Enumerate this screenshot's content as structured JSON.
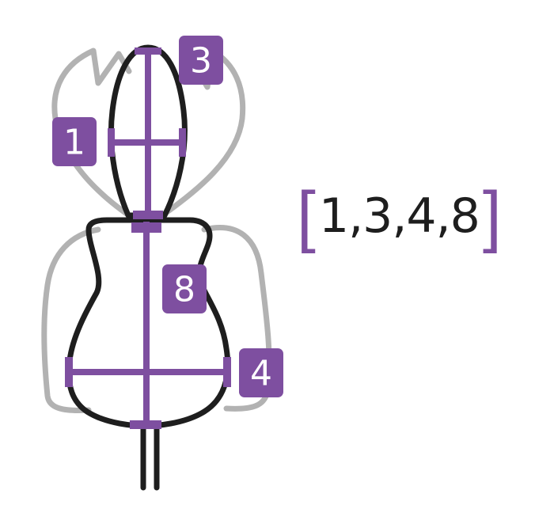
{
  "colors": {
    "accent": "#7e4fa0",
    "outline": "#1e1e1e",
    "ghost": "#b2b2b2"
  },
  "labels": {
    "badge_1": "1",
    "badge_3": "3",
    "badge_8": "8",
    "badge_4": "4"
  },
  "vector": {
    "open_bracket": "[",
    "values": "1,3,4,8",
    "close_bracket": "]"
  }
}
